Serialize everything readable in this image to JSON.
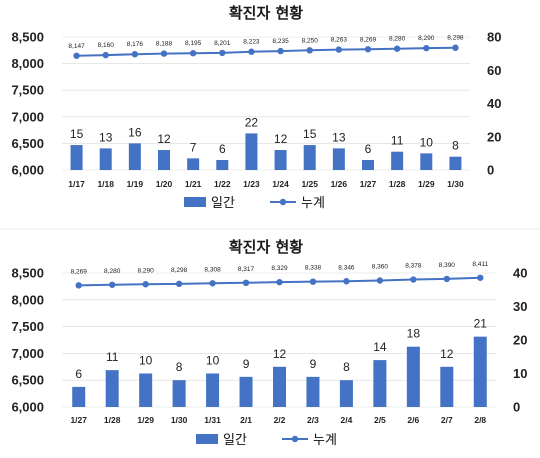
{
  "colors": {
    "bar": "#4472C4",
    "line": "#4472C4",
    "grid": "#d9d9d9"
  },
  "chart_data": [
    {
      "type": "bar+line",
      "title": "확진자 현황",
      "categories": [
        "1/17",
        "1/18",
        "1/19",
        "1/20",
        "1/21",
        "1/22",
        "1/23",
        "1/24",
        "1/25",
        "1/26",
        "1/27",
        "1/28",
        "1/29",
        "1/30"
      ],
      "series": [
        {
          "name": "일간",
          "type": "bar",
          "axis": "right",
          "values": [
            15,
            13,
            16,
            12,
            7,
            6,
            22,
            12,
            15,
            13,
            6,
            11,
            10,
            8
          ],
          "labels": [
            "15",
            "13",
            "16",
            "12",
            "7",
            "6",
            "22",
            "12",
            "15",
            "13",
            "6",
            "11",
            "10",
            "8"
          ]
        },
        {
          "name": "누계",
          "type": "line",
          "axis": "left",
          "values": [
            8147,
            8160,
            8176,
            8188,
            8195,
            8201,
            8223,
            8235,
            8250,
            8263,
            8269,
            8280,
            8290,
            8298
          ],
          "labels": [
            "8,147",
            "8,160",
            "8,176",
            "8,188",
            "8,195",
            "8,201",
            "8,223",
            "8,235",
            "8,250",
            "8,263",
            "8,269",
            "8,280",
            "8,290",
            "8,298"
          ]
        }
      ],
      "left_axis": {
        "ylim": [
          6000,
          8500
        ],
        "ticks": [
          "6,000",
          "6,500",
          "7,000",
          "7,500",
          "8,000",
          "8,500"
        ]
      },
      "right_axis": {
        "ylim": [
          0,
          80
        ],
        "ticks": [
          "0",
          "20",
          "40",
          "60",
          "80"
        ]
      },
      "legend": {
        "position": "bottom",
        "items": [
          "일간",
          "누계"
        ]
      }
    },
    {
      "type": "bar+line",
      "title": "확진자 현황",
      "categories": [
        "1/27",
        "1/28",
        "1/29",
        "1/30",
        "1/31",
        "2/1",
        "2/2",
        "2/3",
        "2/4",
        "2/5",
        "2/6",
        "2/7",
        "2/8"
      ],
      "series": [
        {
          "name": "일간",
          "type": "bar",
          "axis": "right",
          "values": [
            6,
            11,
            10,
            8,
            10,
            9,
            12,
            9,
            8,
            14,
            18,
            12,
            21
          ],
          "labels": [
            "6",
            "11",
            "10",
            "8",
            "10",
            "9",
            "12",
            "9",
            "8",
            "14",
            "18",
            "12",
            "21"
          ]
        },
        {
          "name": "누계",
          "type": "line",
          "axis": "left",
          "values": [
            8269,
            8280,
            8290,
            8298,
            8308,
            8317,
            8329,
            8338,
            8346,
            8360,
            8378,
            8390,
            8411
          ],
          "labels": [
            "8,269",
            "8,280",
            "8,290",
            "8,298",
            "8,308",
            "8,317",
            "8,329",
            "8,338",
            "8,346",
            "8,360",
            "8,378",
            "8,390",
            "8,411"
          ]
        }
      ],
      "left_axis": {
        "ylim": [
          6000,
          8500
        ],
        "ticks": [
          "6,000",
          "6,500",
          "7,000",
          "7,500",
          "8,000",
          "8,500"
        ]
      },
      "right_axis": {
        "ylim": [
          0,
          40
        ],
        "ticks": [
          "0",
          "10",
          "20",
          "30",
          "40"
        ]
      },
      "legend": {
        "position": "bottom",
        "items": [
          "일간",
          "누계"
        ]
      }
    }
  ]
}
